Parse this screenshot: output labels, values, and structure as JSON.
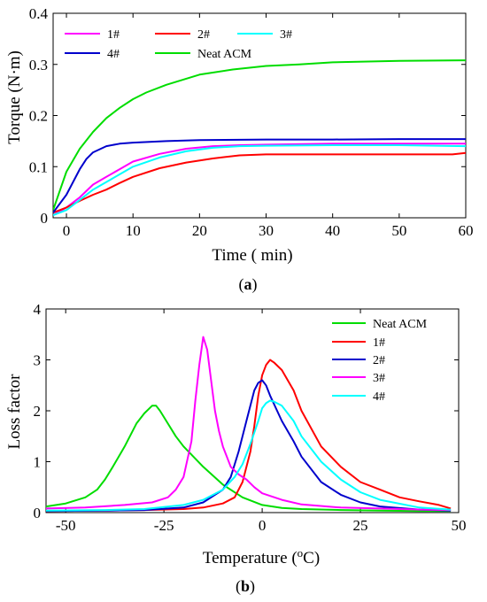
{
  "chart_data": [
    {
      "panel_label": "(a)",
      "panel_letter": "a",
      "type": "line",
      "xlabel": "Time",
      "xlabel_unit": "( min)",
      "ylabel": "Torque",
      "ylabel_unit": "(N·m)",
      "xlim": [
        -2,
        60
      ],
      "ylim": [
        0,
        0.4
      ],
      "xticks": [
        0,
        10,
        20,
        30,
        40,
        50,
        60
      ],
      "yticks": [
        0,
        0.1,
        0.2,
        0.3,
        0.4
      ],
      "xtick_labels": [
        "0",
        "10",
        "20",
        "30",
        "40",
        "50",
        "60"
      ],
      "ytick_labels": [
        "0",
        "0.1",
        "0.2",
        "0.3",
        "0.4"
      ],
      "grid": false,
      "legend_position": "top-left",
      "series": [
        {
          "name": "1#",
          "color": "#ff00ff",
          "x": [
            -2,
            0,
            2,
            4,
            6,
            8,
            10,
            14,
            18,
            22,
            26,
            30,
            40,
            50,
            60
          ],
          "y": [
            0.005,
            0.02,
            0.04,
            0.065,
            0.08,
            0.095,
            0.11,
            0.125,
            0.135,
            0.14,
            0.142,
            0.143,
            0.145,
            0.145,
            0.145
          ]
        },
        {
          "name": "2#",
          "color": "#ff0000",
          "x": [
            -2,
            0,
            2,
            4,
            6,
            8,
            10,
            14,
            18,
            22,
            26,
            30,
            40,
            50,
            58,
            60
          ],
          "y": [
            0.01,
            0.02,
            0.033,
            0.045,
            0.055,
            0.068,
            0.08,
            0.097,
            0.108,
            0.116,
            0.122,
            0.124,
            0.124,
            0.124,
            0.124,
            0.127
          ]
        },
        {
          "name": "3#",
          "color": "#00ffff",
          "x": [
            -2,
            0,
            2,
            4,
            6,
            8,
            10,
            14,
            18,
            22,
            26,
            30,
            40,
            50,
            60
          ],
          "y": [
            0.005,
            0.015,
            0.035,
            0.055,
            0.07,
            0.085,
            0.1,
            0.118,
            0.13,
            0.137,
            0.14,
            0.141,
            0.142,
            0.142,
            0.14
          ]
        },
        {
          "name": "4#",
          "color": "#0000cc",
          "x": [
            -2,
            0,
            2,
            3,
            4,
            6,
            8,
            10,
            15,
            20,
            30,
            40,
            50,
            60
          ],
          "y": [
            0.01,
            0.045,
            0.095,
            0.115,
            0.128,
            0.14,
            0.145,
            0.147,
            0.15,
            0.152,
            0.153,
            0.153,
            0.154,
            0.154
          ]
        },
        {
          "name": "Neat ACM",
          "color": "#00dd00",
          "x": [
            -2,
            0,
            2,
            4,
            6,
            8,
            10,
            12,
            15,
            20,
            25,
            30,
            35,
            40,
            50,
            60
          ],
          "y": [
            0.015,
            0.09,
            0.135,
            0.168,
            0.195,
            0.215,
            0.232,
            0.245,
            0.26,
            0.28,
            0.29,
            0.297,
            0.3,
            0.304,
            0.307,
            0.308
          ]
        }
      ]
    },
    {
      "panel_label": "(b)",
      "panel_letter": "b",
      "type": "line",
      "xlabel": "Temperature",
      "xlabel_unit": "(°C)",
      "ylabel": "Loss factor",
      "xlim": [
        -55,
        50
      ],
      "ylim": [
        0,
        4
      ],
      "xticks": [
        -50,
        -25,
        0,
        25,
        50
      ],
      "yticks": [
        0,
        1,
        2,
        3,
        4
      ],
      "xtick_labels": [
        "-50",
        "-25",
        "0",
        "25",
        "50"
      ],
      "ytick_labels": [
        "0",
        "1",
        "2",
        "3",
        "4"
      ],
      "grid": false,
      "legend_position": "top-right",
      "series": [
        {
          "name": "Neat ACM",
          "color": "#00dd00",
          "x": [
            -55,
            -50,
            -45,
            -42,
            -40,
            -38,
            -35,
            -32,
            -30,
            -28,
            -27,
            -26,
            -24,
            -22,
            -20,
            -15,
            -10,
            -5,
            0,
            5,
            10,
            20,
            30,
            40,
            48
          ],
          "y": [
            0.12,
            0.18,
            0.3,
            0.45,
            0.65,
            0.9,
            1.3,
            1.75,
            1.95,
            2.1,
            2.1,
            2.0,
            1.75,
            1.5,
            1.3,
            0.9,
            0.55,
            0.3,
            0.15,
            0.09,
            0.07,
            0.05,
            0.04,
            0.03,
            0.03
          ]
        },
        {
          "name": "1#",
          "color": "#ff0000",
          "x": [
            -55,
            -40,
            -30,
            -20,
            -15,
            -10,
            -7,
            -5,
            -3,
            -2,
            -1,
            0,
            1,
            2,
            3,
            5,
            8,
            10,
            15,
            20,
            25,
            30,
            35,
            40,
            45,
            48
          ],
          "y": [
            0.03,
            0.04,
            0.05,
            0.07,
            0.1,
            0.18,
            0.3,
            0.6,
            1.2,
            1.7,
            2.3,
            2.7,
            2.9,
            3.0,
            2.95,
            2.8,
            2.4,
            2.0,
            1.3,
            0.9,
            0.6,
            0.45,
            0.3,
            0.22,
            0.15,
            0.08
          ]
        },
        {
          "name": "2#",
          "color": "#0000cc",
          "x": [
            -55,
            -40,
            -30,
            -20,
            -15,
            -10,
            -8,
            -6,
            -4,
            -2,
            -1,
            0,
            1,
            2,
            5,
            8,
            10,
            15,
            20,
            25,
            30,
            40,
            48
          ],
          "y": [
            0.03,
            0.04,
            0.05,
            0.1,
            0.2,
            0.45,
            0.7,
            1.2,
            1.8,
            2.4,
            2.55,
            2.6,
            2.5,
            2.3,
            1.8,
            1.4,
            1.1,
            0.6,
            0.35,
            0.2,
            0.12,
            0.06,
            0.04
          ]
        },
        {
          "name": "3#",
          "color": "#ff00ff",
          "x": [
            -55,
            -45,
            -35,
            -28,
            -24,
            -22,
            -20,
            -18,
            -17,
            -16,
            -15,
            -14,
            -13,
            -12,
            -11,
            -10,
            -8,
            -6,
            -4,
            -2,
            0,
            5,
            10,
            20,
            30,
            40,
            48
          ],
          "y": [
            0.08,
            0.1,
            0.15,
            0.2,
            0.3,
            0.45,
            0.7,
            1.4,
            2.2,
            2.9,
            3.45,
            3.2,
            2.6,
            2.0,
            1.6,
            1.3,
            0.9,
            0.75,
            0.65,
            0.5,
            0.38,
            0.25,
            0.16,
            0.1,
            0.08,
            0.06,
            0.05
          ]
        },
        {
          "name": "4#",
          "color": "#00ffff",
          "x": [
            -55,
            -40,
            -30,
            -20,
            -15,
            -10,
            -7,
            -5,
            -3,
            -1,
            0,
            1,
            2,
            3,
            5,
            8,
            10,
            15,
            20,
            25,
            30,
            40,
            48
          ],
          "y": [
            0.04,
            0.05,
            0.07,
            0.15,
            0.25,
            0.45,
            0.7,
            0.95,
            1.35,
            1.8,
            2.05,
            2.15,
            2.2,
            2.18,
            2.1,
            1.8,
            1.5,
            1.0,
            0.65,
            0.4,
            0.25,
            0.1,
            0.06
          ]
        }
      ]
    }
  ]
}
